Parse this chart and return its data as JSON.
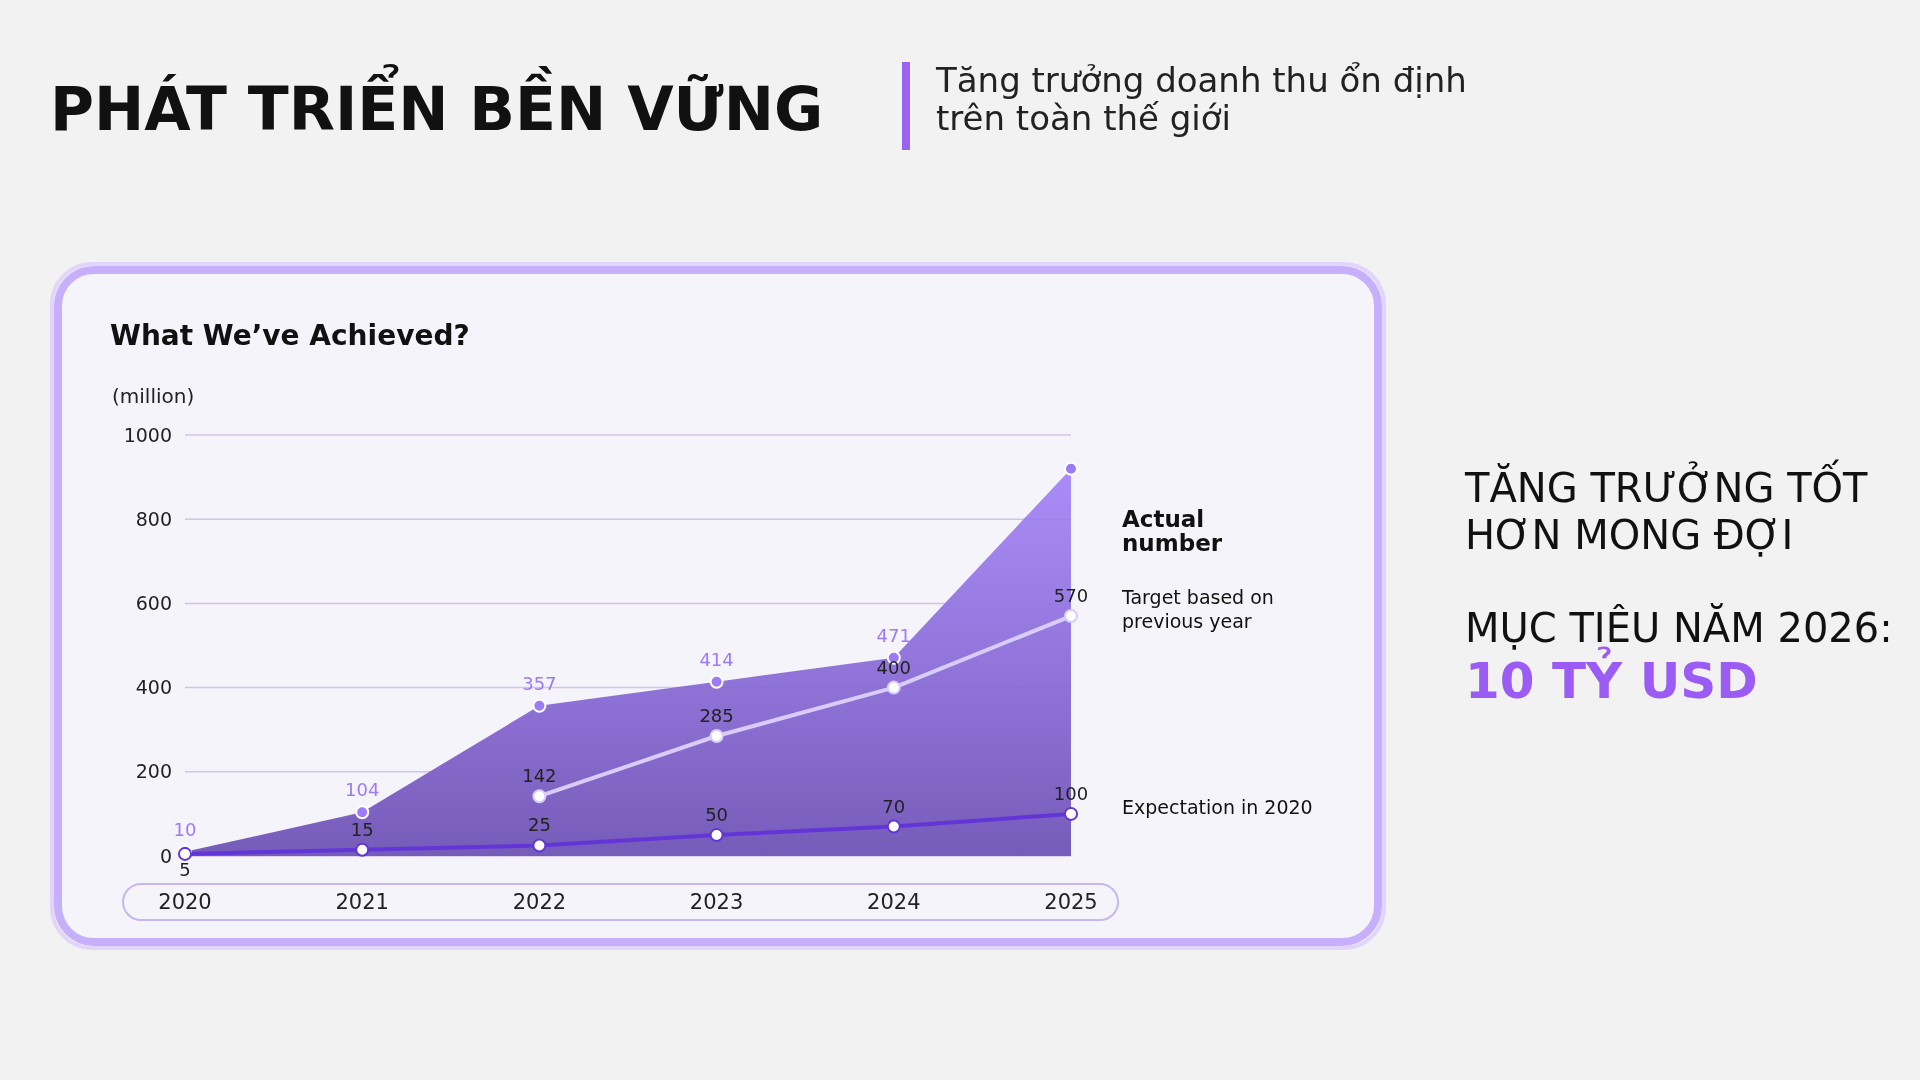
{
  "chart_data": {
    "type": "line",
    "title": "PHÁT TRIỂN BỀN VỮNG",
    "subtitle": "Tăng trưởng doanh thu ổn định trên toàn thế giới",
    "ylabel": "(million)",
    "annotations": [
      "What We’ve Achieved?",
      "TĂNG TRƯỞNG TỐT HƠN MONG ĐỢI",
      "MỤC TIÊU NĂM 2026:",
      "10 TỶ USD"
    ],
    "categories": [
      "2020",
      "2021",
      "2022",
      "2023",
      "2024",
      "2025"
    ],
    "ylim": [
      0,
      1000
    ],
    "yticks": [
      0,
      200,
      400,
      600,
      800,
      1000
    ],
    "grid": "y",
    "marker": "circle",
    "line_style": "solid",
    "series": [
      {
        "name": "Actual number",
        "type": "area",
        "color": "#9d7af6",
        "values": [
          10,
          104,
          357,
          414,
          471,
          920
        ],
        "value_labels": [
          "10",
          "104",
          "357",
          "414",
          "471",
          null
        ]
      },
      {
        "name": "Target based on previous year",
        "color": "#d9ccfb",
        "values": [
          null,
          null,
          142,
          285,
          400,
          570
        ],
        "value_labels": [
          null,
          null,
          "142",
          "285",
          "400",
          "570"
        ]
      },
      {
        "name": "Expectation in 2020",
        "color": "#6236d6",
        "values": [
          5,
          15,
          25,
          50,
          70,
          100
        ],
        "value_labels": [
          "5",
          "15",
          "25",
          "50",
          "70",
          "100"
        ]
      }
    ]
  }
}
